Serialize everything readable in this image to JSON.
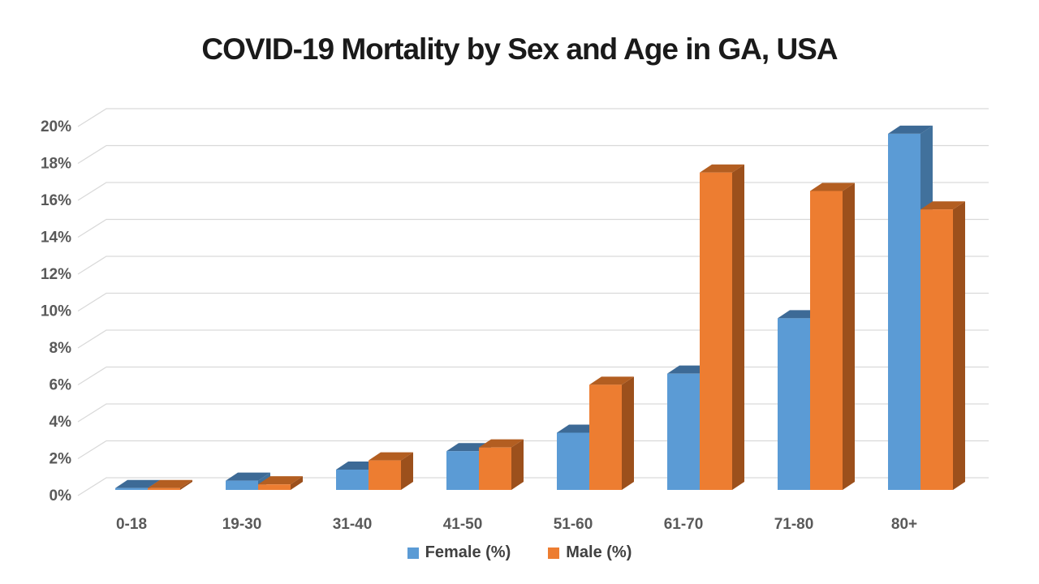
{
  "chart_data": {
    "type": "bar",
    "style": "3d-clustered-column",
    "title": "COVID-19 Mortality by Sex and Age in GA, USA",
    "categories": [
      "0-18",
      "19-30",
      "31-40",
      "41-50",
      "51-60",
      "61-70",
      "71-80",
      "80+"
    ],
    "series": [
      {
        "name": "Female (%)",
        "color": "#5B9BD5",
        "color_top": "#3D6A96",
        "color_side": "#41719C",
        "values": [
          0.1,
          0.5,
          1.1,
          2.1,
          3.1,
          6.3,
          9.3,
          19.3
        ]
      },
      {
        "name": "Male (%)",
        "color": "#ED7D31",
        "color_top": "#B35E21",
        "color_side": "#9C501C",
        "values": [
          0.1,
          0.3,
          1.6,
          2.3,
          5.7,
          17.2,
          16.2,
          15.2
        ]
      }
    ],
    "xlabel": "",
    "ylabel": "",
    "ylim": [
      0,
      20
    ],
    "ytick_step": 2,
    "ytick_suffix": "%",
    "grid": true,
    "grid_color": "#D9D9D9",
    "legend_position": "bottom",
    "axis_text_color": "#595959",
    "legend_text_color": "#404040",
    "title_color": "#1A1A1A",
    "background": "#FFFFFF"
  }
}
